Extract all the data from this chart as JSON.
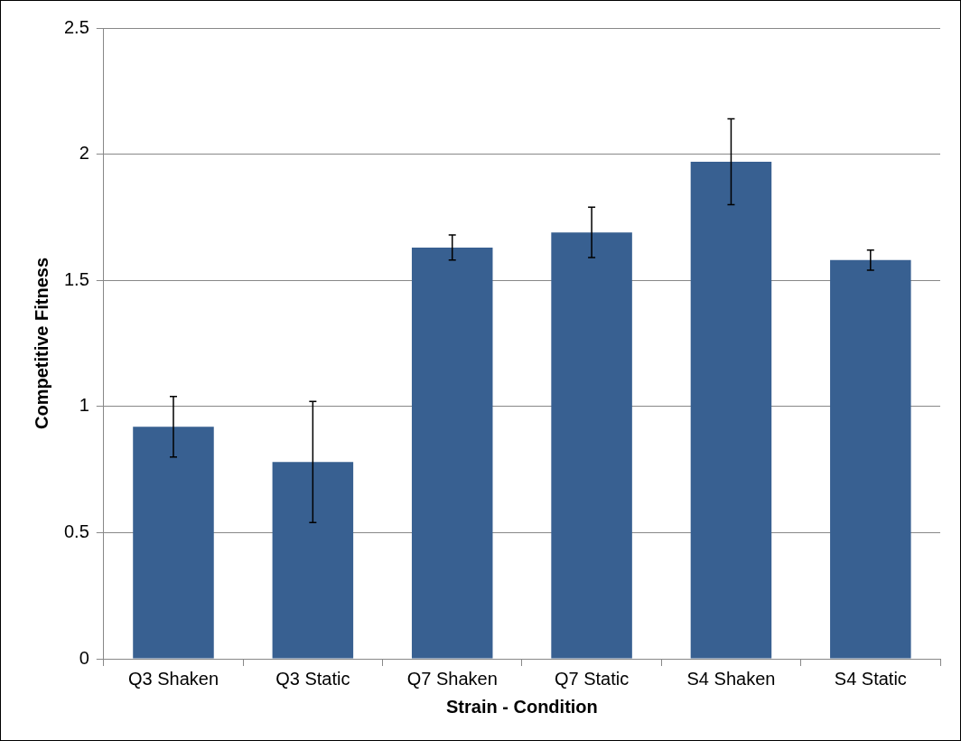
{
  "chart_data": {
    "type": "bar",
    "xlabel": "Strain - Condition",
    "ylabel": "Competitive Fitness",
    "categories": [
      "Q3 Shaken",
      "Q3 Static",
      "Q7 Shaken",
      "Q7 Static",
      "S4 Shaken",
      "S4 Static"
    ],
    "values": [
      0.92,
      0.78,
      1.63,
      1.69,
      1.97,
      1.58
    ],
    "errors": [
      0.12,
      0.24,
      0.05,
      0.1,
      0.17,
      0.04
    ],
    "color": "#386091",
    "ylim": [
      0,
      2.5
    ],
    "yticks": [
      0,
      0.5,
      1,
      1.5,
      2,
      2.5
    ],
    "grid": "y",
    "legend": false
  }
}
